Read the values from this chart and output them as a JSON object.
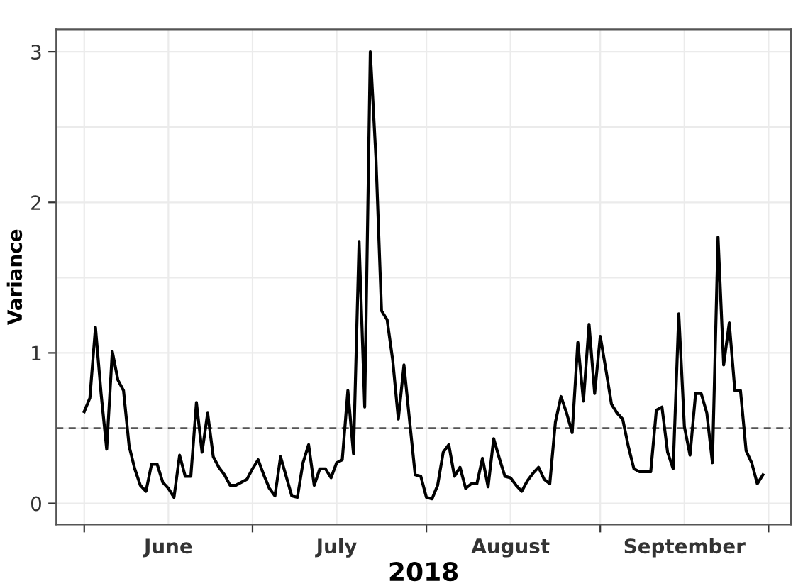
{
  "chart_data": {
    "type": "line",
    "xlabel": "2018",
    "ylabel": "Variance",
    "x": [
      "2018-06-01",
      "2018-06-02",
      "2018-06-03",
      "2018-06-04",
      "2018-06-05",
      "2018-06-06",
      "2018-06-07",
      "2018-06-08",
      "2018-06-09",
      "2018-06-10",
      "2018-06-11",
      "2018-06-12",
      "2018-06-13",
      "2018-06-14",
      "2018-06-15",
      "2018-06-16",
      "2018-06-17",
      "2018-06-18",
      "2018-06-19",
      "2018-06-20",
      "2018-06-21",
      "2018-06-22",
      "2018-06-23",
      "2018-06-24",
      "2018-06-25",
      "2018-06-26",
      "2018-06-27",
      "2018-06-28",
      "2018-06-29",
      "2018-06-30",
      "2018-07-01",
      "2018-07-02",
      "2018-07-03",
      "2018-07-04",
      "2018-07-05",
      "2018-07-06",
      "2018-07-07",
      "2018-07-08",
      "2018-07-09",
      "2018-07-10",
      "2018-07-11",
      "2018-07-12",
      "2018-07-13",
      "2018-07-14",
      "2018-07-15",
      "2018-07-16",
      "2018-07-17",
      "2018-07-18",
      "2018-07-19",
      "2018-07-20",
      "2018-07-21",
      "2018-07-22",
      "2018-07-23",
      "2018-07-24",
      "2018-07-25",
      "2018-07-26",
      "2018-07-27",
      "2018-07-28",
      "2018-07-29",
      "2018-07-30",
      "2018-07-31",
      "2018-08-01",
      "2018-08-02",
      "2018-08-03",
      "2018-08-04",
      "2018-08-05",
      "2018-08-06",
      "2018-08-07",
      "2018-08-08",
      "2018-08-09",
      "2018-08-10",
      "2018-08-11",
      "2018-08-12",
      "2018-08-13",
      "2018-08-14",
      "2018-08-15",
      "2018-08-16",
      "2018-08-17",
      "2018-08-18",
      "2018-08-19",
      "2018-08-20",
      "2018-08-21",
      "2018-08-22",
      "2018-08-23",
      "2018-08-24",
      "2018-08-25",
      "2018-08-26",
      "2018-08-27",
      "2018-08-28",
      "2018-08-29",
      "2018-08-30",
      "2018-08-31",
      "2018-09-01",
      "2018-09-02",
      "2018-09-03",
      "2018-09-04",
      "2018-09-05",
      "2018-09-06",
      "2018-09-07",
      "2018-09-08",
      "2018-09-09",
      "2018-09-10",
      "2018-09-11",
      "2018-09-12",
      "2018-09-13",
      "2018-09-14",
      "2018-09-15",
      "2018-09-16",
      "2018-09-17",
      "2018-09-18",
      "2018-09-19",
      "2018-09-20",
      "2018-09-21",
      "2018-09-22",
      "2018-09-23",
      "2018-09-24",
      "2018-09-25",
      "2018-09-26",
      "2018-09-27",
      "2018-09-28",
      "2018-09-29",
      "2018-09-30"
    ],
    "series": [
      {
        "color": "#000000",
        "values": [
          0.61,
          0.7,
          1.17,
          0.73,
          0.36,
          1.01,
          0.82,
          0.75,
          0.38,
          0.23,
          0.12,
          0.08,
          0.26,
          0.26,
          0.14,
          0.1,
          0.04,
          0.32,
          0.18,
          0.18,
          0.67,
          0.34,
          0.6,
          0.31,
          0.24,
          0.19,
          0.12,
          0.12,
          0.14,
          0.16,
          0.23,
          0.29,
          0.19,
          0.1,
          0.05,
          0.31,
          0.18,
          0.05,
          0.04,
          0.27,
          0.39,
          0.12,
          0.23,
          0.23,
          0.17,
          0.27,
          0.29,
          0.75,
          0.33,
          1.74,
          0.64,
          3.0,
          2.3,
          1.28,
          1.22,
          0.95,
          0.56,
          0.92,
          0.55,
          0.19,
          0.18,
          0.04,
          0.03,
          0.12,
          0.34,
          0.39,
          0.18,
          0.24,
          0.1,
          0.13,
          0.13,
          0.3,
          0.11,
          0.43,
          0.3,
          0.18,
          0.17,
          0.12,
          0.08,
          0.15,
          0.2,
          0.24,
          0.16,
          0.13,
          0.54,
          0.71,
          0.6,
          0.47,
          1.07,
          0.68,
          1.19,
          0.73,
          1.11,
          0.89,
          0.66,
          0.6,
          0.56,
          0.38,
          0.23,
          0.21,
          0.21,
          0.21,
          0.62,
          0.64,
          0.34,
          0.23,
          1.26,
          0.51,
          0.32,
          0.73,
          0.73,
          0.6,
          0.27,
          1.77,
          0.92,
          1.2,
          0.75,
          0.75,
          0.35,
          0.27,
          0.13,
          0.19
        ]
      }
    ],
    "xlim": [
      "2018-05-27",
      "2018-10-05"
    ],
    "xticks": [
      {
        "value": "2018-06-01",
        "label": null
      },
      {
        "value": "2018-06-16",
        "label": "June"
      },
      {
        "value": "2018-07-01",
        "label": null
      },
      {
        "value": "2018-07-16",
        "label": "July"
      },
      {
        "value": "2018-08-01",
        "label": null
      },
      {
        "value": "2018-08-16",
        "label": "August"
      },
      {
        "value": "2018-09-01",
        "label": null
      },
      {
        "value": "2018-09-16",
        "label": "September"
      },
      {
        "value": "2018-10-01",
        "label": null
      }
    ],
    "ylim": [
      -0.14,
      3.15
    ],
    "yticks": [
      0,
      {
        "value": 0.5,
        "label": null
      },
      1,
      {
        "value": 1.5,
        "label": null
      },
      2,
      {
        "value": 2.5,
        "label": null
      },
      3
    ],
    "ref_lines": [
      {
        "axis": "y",
        "value": 0.5,
        "color": "#555555",
        "line_style": "dashed"
      }
    ],
    "grid": true,
    "legend": false,
    "marker": "none",
    "line_style": "solid"
  }
}
